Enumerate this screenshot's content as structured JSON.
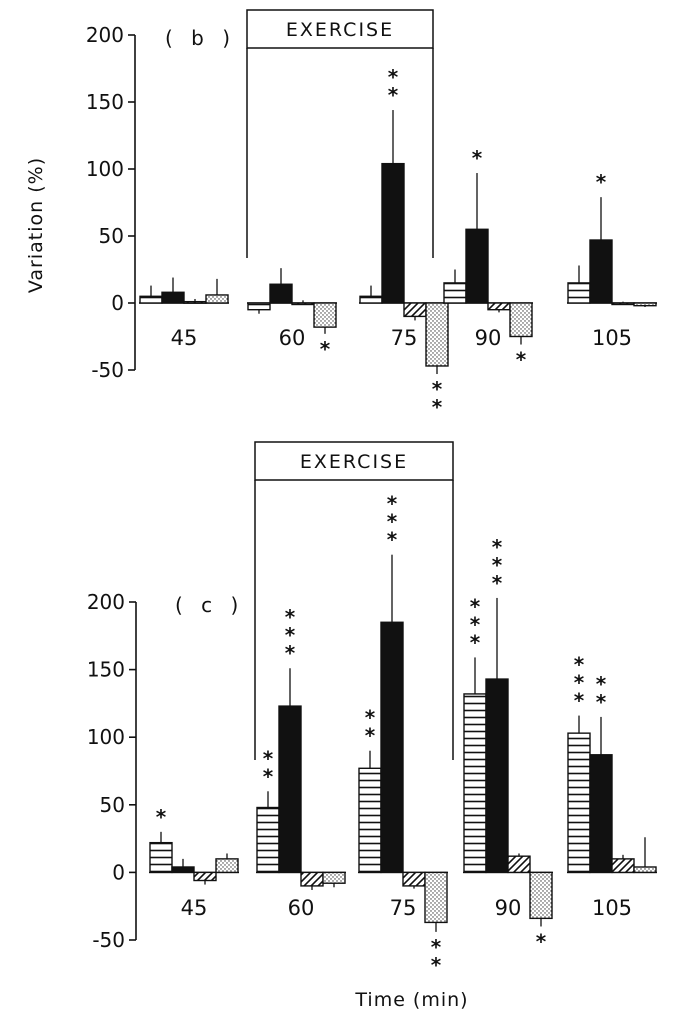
{
  "chart_data": [
    {
      "type": "bar",
      "panel_label": "( b )",
      "exercise_label": "EXERCISE",
      "exercise_window": [
        "60",
        "75"
      ],
      "categories": [
        "45",
        "60",
        "75",
        "90",
        "105"
      ],
      "ylabel": "Variation (%)",
      "ylim": [
        -50,
        200
      ],
      "yticks": [
        {
          "value": 200,
          "label": "200"
        },
        {
          "value": 150,
          "label": "150"
        },
        {
          "value": 100,
          "label": "100"
        },
        {
          "value": 50,
          "label": "50"
        },
        {
          "value": 0,
          "label": "0"
        },
        {
          "value": -50,
          "label": "-50"
        }
      ],
      "series": [
        {
          "name": "horizontal-striped",
          "pattern": "hstripe",
          "values": [
            5,
            -5,
            5,
            15,
            15
          ],
          "errors": [
            8,
            3,
            8,
            10,
            13
          ],
          "significance": [
            "",
            "",
            "",
            "",
            ""
          ]
        },
        {
          "name": "solid-black",
          "pattern": "solid",
          "values": [
            8,
            14,
            104,
            55,
            47
          ],
          "errors": [
            11,
            12,
            40,
            42,
            32
          ],
          "significance": [
            "",
            "",
            "* *",
            "*",
            "*"
          ]
        },
        {
          "name": "diagonal-hatched",
          "pattern": "diag",
          "values": [
            1,
            0,
            -10,
            -5,
            0
          ],
          "errors": [
            2,
            2,
            3,
            2,
            1
          ],
          "significance": [
            "",
            "",
            "",
            "",
            ""
          ]
        },
        {
          "name": "dotted",
          "pattern": "dots",
          "values": [
            6,
            -18,
            -47,
            -25,
            -2
          ],
          "errors": [
            12,
            5,
            6,
            6,
            1
          ],
          "significance": [
            "",
            "*",
            "* *",
            "*",
            ""
          ]
        }
      ]
    },
    {
      "type": "bar",
      "panel_label": "( c )",
      "exercise_label": "EXERCISE",
      "exercise_window": [
        "60",
        "75"
      ],
      "categories": [
        "45",
        "60",
        "75",
        "90",
        "105"
      ],
      "xlabel": "Time (min)",
      "ylim": [
        -50,
        200
      ],
      "yticks": [
        {
          "value": 200,
          "label": "200"
        },
        {
          "value": 150,
          "label": "150"
        },
        {
          "value": 100,
          "label": "100"
        },
        {
          "value": 50,
          "label": "50"
        },
        {
          "value": 0,
          "label": "0"
        },
        {
          "value": -50,
          "label": "-50"
        }
      ],
      "series": [
        {
          "name": "horizontal-striped",
          "pattern": "hstripe",
          "values": [
            22,
            48,
            77,
            132,
            103
          ],
          "errors": [
            8,
            12,
            13,
            27,
            13
          ],
          "significance": [
            "*",
            "* *",
            "* *",
            "* * *",
            "* * *"
          ]
        },
        {
          "name": "solid-black",
          "pattern": "solid",
          "values": [
            4,
            123,
            185,
            143,
            87
          ],
          "errors": [
            6,
            28,
            50,
            60,
            28
          ],
          "significance": [
            "",
            "* * *",
            "* * *",
            "* * *",
            "* *"
          ]
        },
        {
          "name": "diagonal-hatched",
          "pattern": "diag",
          "values": [
            -6,
            -10,
            -10,
            12,
            10
          ],
          "errors": [
            3,
            3,
            2,
            2,
            3
          ],
          "significance": [
            "",
            "",
            "",
            "",
            ""
          ]
        },
        {
          "name": "dotted",
          "pattern": "dots",
          "values": [
            10,
            -8,
            -37,
            -34,
            4
          ],
          "errors": [
            4,
            3,
            7,
            6,
            22
          ],
          "significance": [
            "",
            "",
            "* *",
            "*",
            ""
          ]
        }
      ]
    }
  ]
}
